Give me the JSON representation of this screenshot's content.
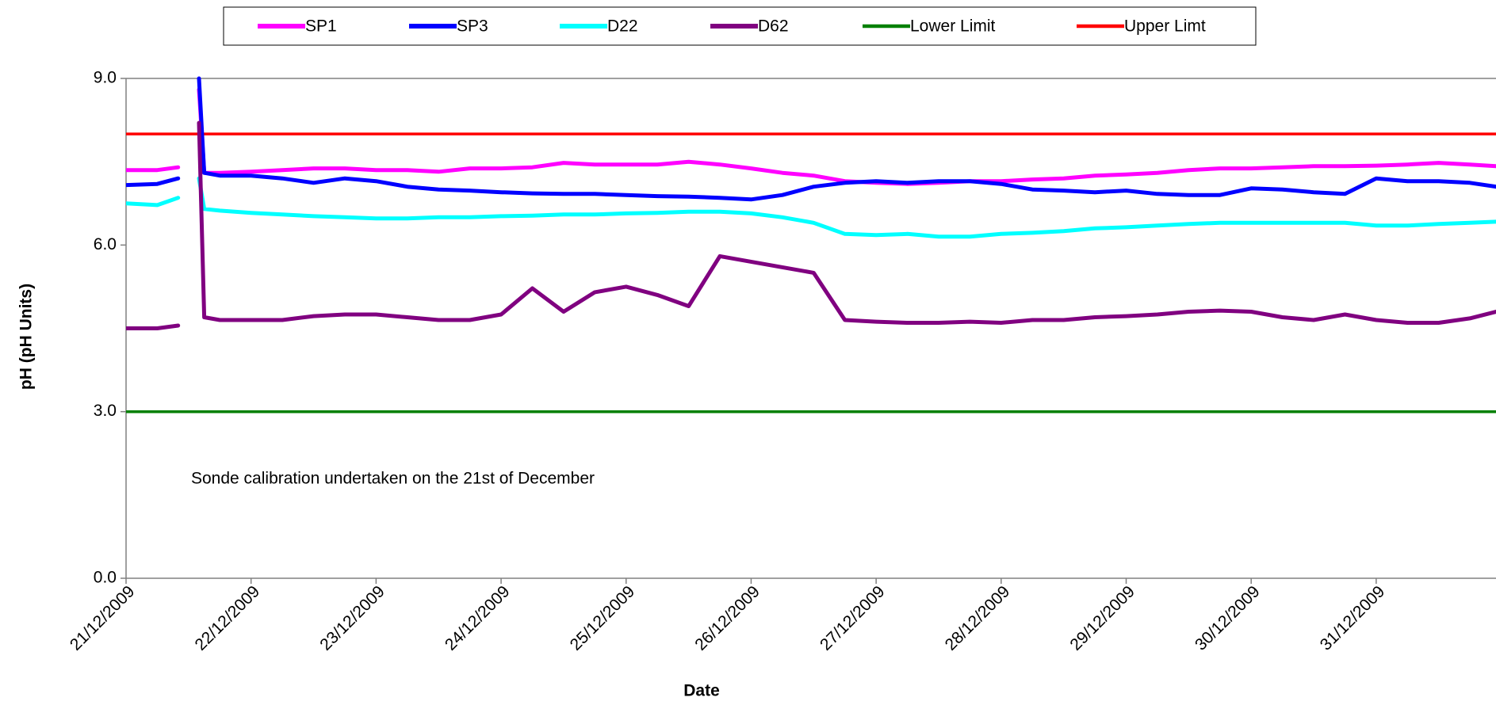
{
  "chart_data": {
    "type": "line",
    "x_label": "Date",
    "y_label": "pH (pH Units)",
    "annotation": "Sonde calibration undertaken on the 21st of December",
    "x": [
      "2009-12-21T00:00",
      "2009-12-21T06:00",
      "2009-12-21T10:00",
      "2009-12-21T13:00",
      "2009-12-21T14:00",
      "2009-12-21T15:00",
      "2009-12-21T18:00",
      "2009-12-22T00:00",
      "2009-12-22T06:00",
      "2009-12-22T12:00",
      "2009-12-22T18:00",
      "2009-12-23T00:00",
      "2009-12-23T06:00",
      "2009-12-23T12:00",
      "2009-12-23T18:00",
      "2009-12-24T00:00",
      "2009-12-24T06:00",
      "2009-12-24T12:00",
      "2009-12-24T18:00",
      "2009-12-25T00:00",
      "2009-12-25T06:00",
      "2009-12-25T12:00",
      "2009-12-25T18:00",
      "2009-12-26T00:00",
      "2009-12-26T06:00",
      "2009-12-26T12:00",
      "2009-12-26T18:00",
      "2009-12-27T00:00",
      "2009-12-27T06:00",
      "2009-12-27T12:00",
      "2009-12-27T18:00",
      "2009-12-28T00:00",
      "2009-12-28T06:00",
      "2009-12-28T12:00",
      "2009-12-28T18:00",
      "2009-12-29T00:00",
      "2009-12-29T06:00",
      "2009-12-29T12:00",
      "2009-12-29T18:00",
      "2009-12-30T00:00",
      "2009-12-30T06:00",
      "2009-12-30T12:00",
      "2009-12-30T18:00",
      "2009-12-31T00:00",
      "2009-12-31T06:00",
      "2009-12-31T12:00",
      "2009-12-31T18:00",
      "2009-12-31T23:00"
    ],
    "series": [
      {
        "name": "SP1",
        "color": "#ff00ff",
        "width": 5,
        "values": [
          7.35,
          7.35,
          7.4,
          null,
          8.8,
          7.3,
          7.3,
          7.32,
          7.35,
          7.38,
          7.38,
          7.35,
          7.35,
          7.32,
          7.38,
          7.38,
          7.4,
          7.48,
          7.45,
          7.45,
          7.45,
          7.5,
          7.45,
          7.38,
          7.3,
          7.25,
          7.15,
          7.12,
          7.1,
          7.12,
          7.15,
          7.15,
          7.18,
          7.2,
          7.25,
          7.27,
          7.3,
          7.35,
          7.38,
          7.38,
          7.4,
          7.42,
          7.42,
          7.43,
          7.45,
          7.48,
          7.45,
          7.42
        ]
      },
      {
        "name": "SP3",
        "color": "#0000ff",
        "width": 5,
        "values": [
          7.08,
          7.1,
          7.2,
          null,
          9.0,
          7.3,
          7.25,
          7.25,
          7.2,
          7.12,
          7.2,
          7.15,
          7.05,
          7.0,
          6.98,
          6.95,
          6.93,
          6.92,
          6.92,
          6.9,
          6.88,
          6.87,
          6.85,
          6.82,
          6.9,
          7.05,
          7.12,
          7.15,
          7.12,
          7.15,
          7.15,
          7.1,
          7.0,
          6.98,
          6.95,
          6.98,
          6.92,
          6.9,
          6.9,
          7.02,
          7.0,
          6.95,
          6.92,
          7.2,
          7.15,
          7.15,
          7.12,
          7.05
        ]
      },
      {
        "name": "D22",
        "color": "#00ffff",
        "width": 5,
        "values": [
          6.75,
          6.72,
          6.85,
          null,
          7.2,
          6.65,
          6.62,
          6.58,
          6.55,
          6.52,
          6.5,
          6.48,
          6.48,
          6.5,
          6.5,
          6.52,
          6.53,
          6.55,
          6.55,
          6.57,
          6.58,
          6.6,
          6.6,
          6.57,
          6.5,
          6.4,
          6.2,
          6.18,
          6.2,
          6.15,
          6.15,
          6.2,
          6.22,
          6.25,
          6.3,
          6.32,
          6.35,
          6.38,
          6.4,
          6.4,
          6.4,
          6.4,
          6.4,
          6.35,
          6.35,
          6.38,
          6.4,
          6.42
        ]
      },
      {
        "name": "D62",
        "color": "#800080",
        "width": 5,
        "values": [
          4.5,
          4.5,
          4.55,
          null,
          8.2,
          4.7,
          4.65,
          4.65,
          4.65,
          4.72,
          4.75,
          4.75,
          4.7,
          4.65,
          4.65,
          4.75,
          5.22,
          4.8,
          5.15,
          5.25,
          5.1,
          4.9,
          5.8,
          5.7,
          5.6,
          5.5,
          4.65,
          4.62,
          4.6,
          4.6,
          4.62,
          4.6,
          4.65,
          4.65,
          4.7,
          4.72,
          4.75,
          4.8,
          4.82,
          4.8,
          4.7,
          4.65,
          4.75,
          4.65,
          4.6,
          4.6,
          4.68,
          4.8
        ]
      },
      {
        "name": "Lower Limit",
        "color": "#008000",
        "width": 3.5,
        "values": [
          3,
          3,
          3,
          3,
          3,
          3,
          3,
          3,
          3,
          3,
          3,
          3,
          3,
          3,
          3,
          3,
          3,
          3,
          3,
          3,
          3,
          3,
          3,
          3,
          3,
          3,
          3,
          3,
          3,
          3,
          3,
          3,
          3,
          3,
          3,
          3,
          3,
          3,
          3,
          3,
          3,
          3,
          3,
          3,
          3,
          3,
          3,
          3
        ]
      },
      {
        "name": "Upper Limt",
        "color": "#ff0000",
        "width": 3.5,
        "values": [
          8,
          8,
          8,
          8,
          8,
          8,
          8,
          8,
          8,
          8,
          8,
          8,
          8,
          8,
          8,
          8,
          8,
          8,
          8,
          8,
          8,
          8,
          8,
          8,
          8,
          8,
          8,
          8,
          8,
          8,
          8,
          8,
          8,
          8,
          8,
          8,
          8,
          8,
          8,
          8,
          8,
          8,
          8,
          8,
          8,
          8,
          8,
          8
        ]
      }
    ],
    "xlim": [
      "2009-12-21T00:00",
      "2009-12-31T23:00"
    ],
    "xticks": [
      {
        "value": "2009-12-21T00:00",
        "label": "21/12/2009"
      },
      {
        "value": "2009-12-22T00:00",
        "label": "22/12/2009"
      },
      {
        "value": "2009-12-23T00:00",
        "label": "23/12/2009"
      },
      {
        "value": "2009-12-24T00:00",
        "label": "24/12/2009"
      },
      {
        "value": "2009-12-25T00:00",
        "label": "25/12/2009"
      },
      {
        "value": "2009-12-26T00:00",
        "label": "26/12/2009"
      },
      {
        "value": "2009-12-27T00:00",
        "label": "27/12/2009"
      },
      {
        "value": "2009-12-28T00:00",
        "label": "28/12/2009"
      },
      {
        "value": "2009-12-29T00:00",
        "label": "29/12/2009"
      },
      {
        "value": "2009-12-30T00:00",
        "label": "30/12/2009"
      },
      {
        "value": "2009-12-31T00:00",
        "label": "31/12/2009"
      }
    ],
    "ylim": [
      0,
      9
    ],
    "yticks": [
      {
        "value": 0,
        "label": "0.0"
      },
      {
        "value": 3,
        "label": "3.0"
      },
      {
        "value": 6,
        "label": "6.0"
      },
      {
        "value": 9,
        "label": "9.0"
      }
    ],
    "legend": "top"
  }
}
